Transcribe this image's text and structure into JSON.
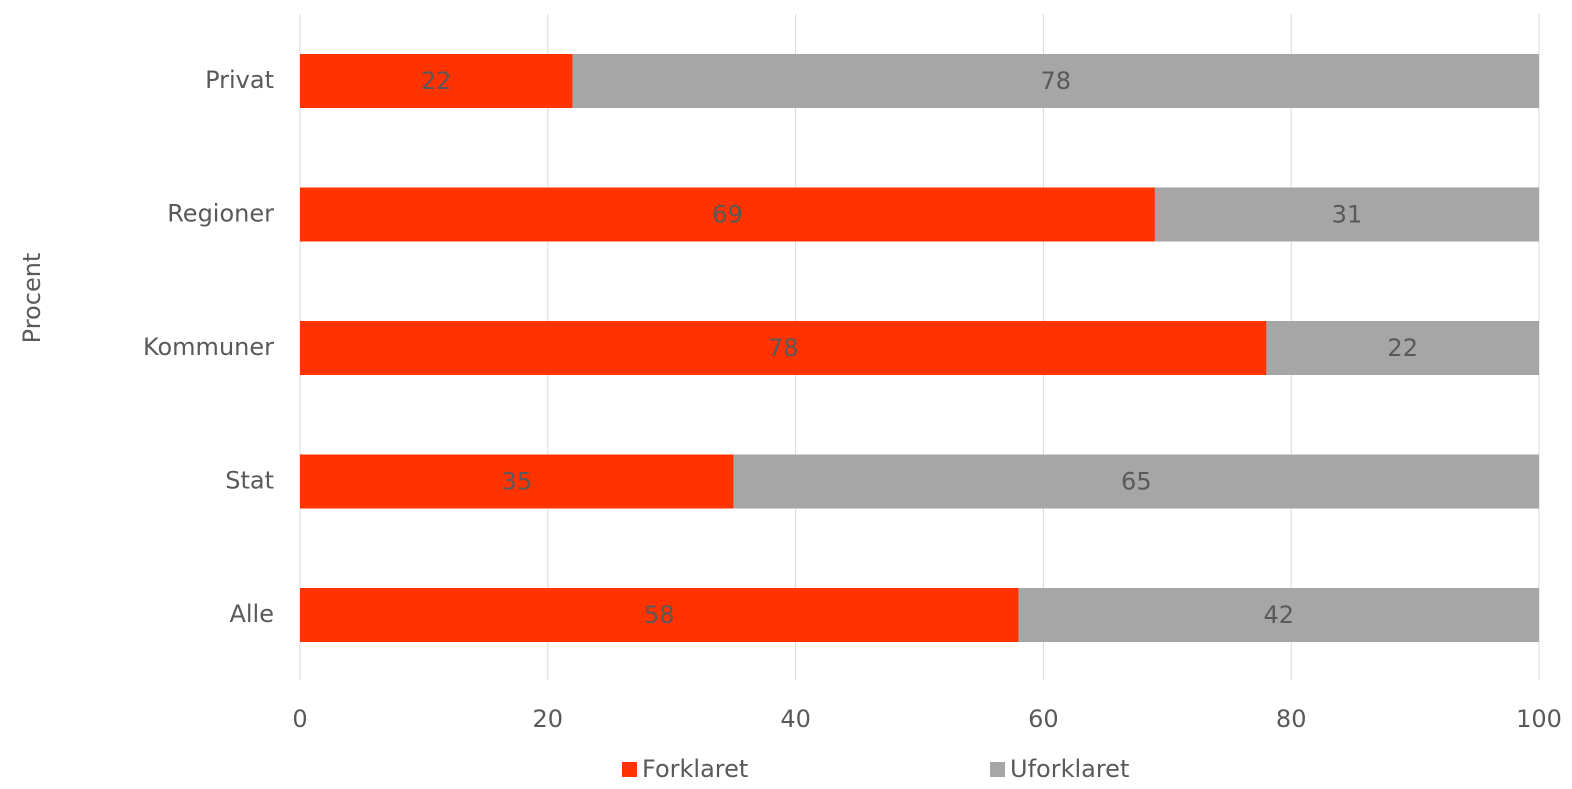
{
  "chart_data": {
    "type": "bar",
    "orientation": "horizontal",
    "stacked": true,
    "title": "",
    "xlabel": "",
    "ylabel": "Procent",
    "categories": [
      "Privat",
      "Regioner",
      "Kommuner",
      "Stat",
      "Alle"
    ],
    "series": [
      {
        "name": "Forklaret",
        "color": "#ff3300",
        "values": [
          22,
          69,
          78,
          35,
          58
        ]
      },
      {
        "name": "Uforklaret",
        "color": "#a6a6a6",
        "values": [
          78,
          31,
          22,
          65,
          42
        ]
      }
    ],
    "xlim": [
      0,
      100
    ],
    "x_ticks": [
      "0",
      "20",
      "40",
      "60",
      "80",
      "100"
    ],
    "grid": true,
    "legend_position": "bottom",
    "data_label_color": "#595959"
  }
}
